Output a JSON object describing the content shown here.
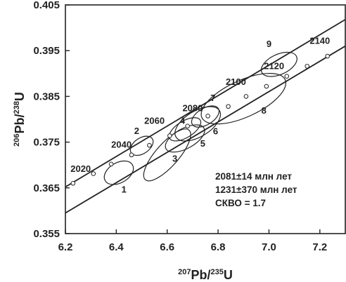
{
  "chart_data": {
    "type": "scatter",
    "title": "",
    "xlim": [
      6.2,
      7.3
    ],
    "ylim": [
      0.355,
      0.405
    ],
    "x_ticks": [
      6.2,
      6.4,
      6.6,
      6.8,
      7.0,
      7.2
    ],
    "x_tick_labels": [
      "6.2",
      "6.4",
      "6.6",
      "6.8",
      "7.0",
      "7.2"
    ],
    "y_ticks": [
      0.355,
      0.365,
      0.375,
      0.385,
      0.395,
      0.405
    ],
    "y_tick_labels": [
      "0.355",
      "0.365",
      "0.375",
      "0.385",
      "0.395",
      "0.405"
    ],
    "xlabel": {
      "sup": "207",
      "main": "Pb/",
      "sup2": "235",
      "end": "U"
    },
    "ylabel": {
      "sup": "206",
      "main": "Pb/",
      "sup2": "238",
      "end": "U"
    },
    "concordia": {
      "points": [
        {
          "x": 6.23,
          "y": 0.366
        },
        {
          "x": 6.31,
          "y": 0.3681
        },
        {
          "x": 6.38,
          "y": 0.3702
        },
        {
          "x": 6.46,
          "y": 0.3722
        },
        {
          "x": 6.53,
          "y": 0.3743
        },
        {
          "x": 6.61,
          "y": 0.3764
        },
        {
          "x": 6.68,
          "y": 0.3785
        },
        {
          "x": 6.76,
          "y": 0.3807
        },
        {
          "x": 6.84,
          "y": 0.3828
        },
        {
          "x": 6.91,
          "y": 0.385
        },
        {
          "x": 6.99,
          "y": 0.3872
        },
        {
          "x": 7.07,
          "y": 0.3894
        },
        {
          "x": 7.15,
          "y": 0.3916
        },
        {
          "x": 7.23,
          "y": 0.3938
        }
      ],
      "line_start": {
        "x": 6.2,
        "y": 0.3652
      },
      "line_end": {
        "x": 7.3,
        "y": 0.4018
      }
    },
    "discordia": {
      "start": {
        "x": 6.2,
        "y": 0.3595
      },
      "end": {
        "x": 7.3,
        "y": 0.396
      }
    },
    "age_labels": [
      {
        "text": "2020",
        "x": 6.26,
        "y": 0.3685
      },
      {
        "text": "2040",
        "x": 6.42,
        "y": 0.3738
      },
      {
        "text": "2060",
        "x": 6.55,
        "y": 0.379
      },
      {
        "text": "2080",
        "x": 6.7,
        "y": 0.3818
      },
      {
        "text": "2100",
        "x": 6.87,
        "y": 0.3875
      },
      {
        "text": "2120",
        "x": 7.02,
        "y": 0.391
      },
      {
        "text": "2140",
        "x": 7.2,
        "y": 0.3965
      }
    ],
    "ellipses": [
      {
        "label": "1",
        "cx": 6.41,
        "cy": 0.3683,
        "rx": 0.062,
        "ry": 0.0022,
        "angle": -0.53,
        "lx": 6.43,
        "ly": 0.364
      },
      {
        "label": "2",
        "cx": 6.5,
        "cy": 0.3742,
        "rx": 0.05,
        "ry": 0.0017,
        "angle": -0.6,
        "lx": 6.48,
        "ly": 0.3768
      },
      {
        "label": "3",
        "cx": 6.6,
        "cy": 0.3722,
        "rx": 0.13,
        "ry": 0.0025,
        "angle": -0.85,
        "lx": 6.63,
        "ly": 0.3707
      },
      {
        "label": "4",
        "cx": 6.67,
        "cy": 0.3778,
        "rx": 0.07,
        "ry": 0.0018,
        "angle": -0.55,
        "lx": 6.66,
        "ly": 0.379
      },
      {
        "label": "5",
        "cx": 6.67,
        "cy": 0.3758,
        "rx": 0.085,
        "ry": 0.0022,
        "angle": -0.5,
        "lx": 6.74,
        "ly": 0.374
      },
      {
        "label": "6",
        "cx": 6.72,
        "cy": 0.379,
        "rx": 0.1,
        "ry": 0.0028,
        "angle": -0.55,
        "lx": 6.79,
        "ly": 0.3767
      },
      {
        "label": "7",
        "cx": 6.75,
        "cy": 0.3806,
        "rx": 0.06,
        "ry": 0.0018,
        "angle": -0.55,
        "lx": 6.78,
        "ly": 0.384
      },
      {
        "label": "8",
        "cx": 6.9,
        "cy": 0.3845,
        "rx": 0.18,
        "ry": 0.004,
        "angle": -0.43,
        "lx": 6.98,
        "ly": 0.3812
      },
      {
        "label": "9",
        "cx": 7.04,
        "cy": 0.392,
        "rx": 0.075,
        "ry": 0.0022,
        "angle": -0.43,
        "lx": 7.0,
        "ly": 0.3958
      }
    ],
    "stats": [
      "2081±14 млн лет",
      "1231±370 млн лет",
      "СКВО = 1.7"
    ]
  }
}
